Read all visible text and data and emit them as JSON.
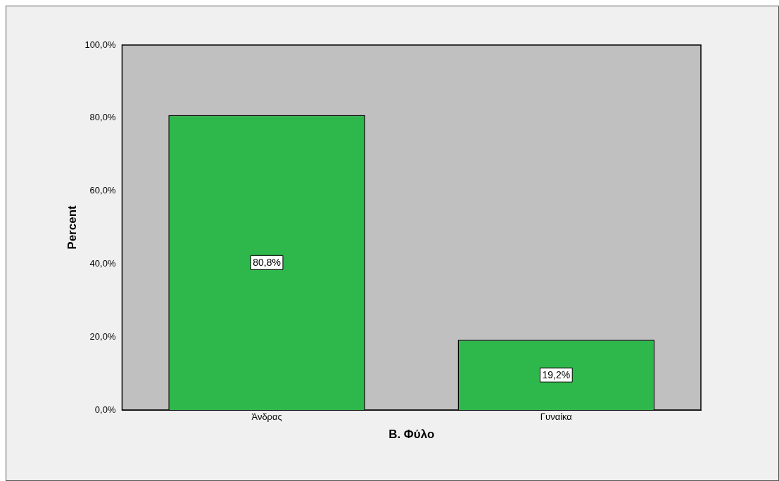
{
  "chart_data": {
    "type": "bar",
    "xlabel": "Β. Φύλο",
    "ylabel": "Percent",
    "categories": [
      "Άνδρας",
      "Γυναίκα"
    ],
    "values": [
      80.8,
      19.2
    ],
    "color": "#2eb84b",
    "value_labels": [
      "80,8%",
      "19,2%"
    ],
    "ylim": [
      0,
      100
    ],
    "yticks": [
      {
        "value": 0,
        "label": "0,0%"
      },
      {
        "value": 20,
        "label": "20,0%"
      },
      {
        "value": 40,
        "label": "40,0%"
      },
      {
        "value": 60,
        "label": "60,0%"
      },
      {
        "value": 80,
        "label": "80,0%"
      },
      {
        "value": 100,
        "label": "100,0%"
      }
    ],
    "grid": false,
    "legend": false
  }
}
